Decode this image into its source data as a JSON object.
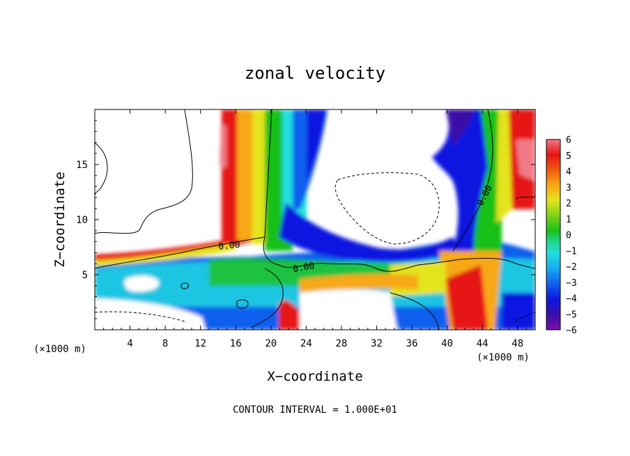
{
  "chart_data": {
    "type": "heatmap",
    "title": "zonal velocity",
    "xlabel": "X−coordinate",
    "ylabel": "Z−coordinate",
    "x_unit_left": "(×1000 m)",
    "x_unit_right": "(×1000 m)",
    "xlim": [
      0,
      50
    ],
    "ylim": [
      0,
      20
    ],
    "x_ticks": [
      4,
      8,
      12,
      16,
      20,
      24,
      28,
      32,
      36,
      40,
      44,
      48
    ],
    "y_ticks": [
      5,
      10,
      15
    ],
    "x_tick_labels": [
      "4",
      "8",
      "12",
      "16",
      "20",
      "24",
      "28",
      "32",
      "36",
      "40",
      "44",
      "48"
    ],
    "y_tick_labels": [
      "5",
      "10",
      "15"
    ],
    "colorbar": {
      "ticks": [
        "6",
        "5",
        "4",
        "3",
        "2",
        "1",
        "0",
        "−1",
        "−2",
        "−3",
        "−4",
        "−5",
        "−6"
      ],
      "range": [
        -6,
        6
      ],
      "colors": [
        "#7a10a8",
        "#3b0fa8",
        "#1016e0",
        "#1060ee",
        "#18a8f0",
        "#22dede",
        "#20d890",
        "#19c019",
        "#7ed21a",
        "#e4e41c",
        "#f7a814",
        "#f05a0f",
        "#e61414",
        "#f27a86"
      ]
    },
    "contour_labels": [
      "0.00",
      "0.00",
      "0.00"
    ],
    "contour_interval_text": "CONTOUR INTERVAL = 1.000E+01",
    "features": [
      {
        "name": "positive updraft column (red)",
        "x_center": 16,
        "z_range": [
          6.5,
          20
        ]
      },
      {
        "name": "zero contour column",
        "x_center": 19.5,
        "z_range": [
          7,
          20
        ]
      },
      {
        "name": "negative blue column",
        "x_center": 23,
        "z_range": [
          8,
          20
        ]
      },
      {
        "name": "negative lobe upper right",
        "x_center": 42,
        "z_range": [
          8,
          20
        ]
      },
      {
        "name": "dashed closed contour",
        "x_center": 33,
        "z_center": 11
      }
    ]
  }
}
